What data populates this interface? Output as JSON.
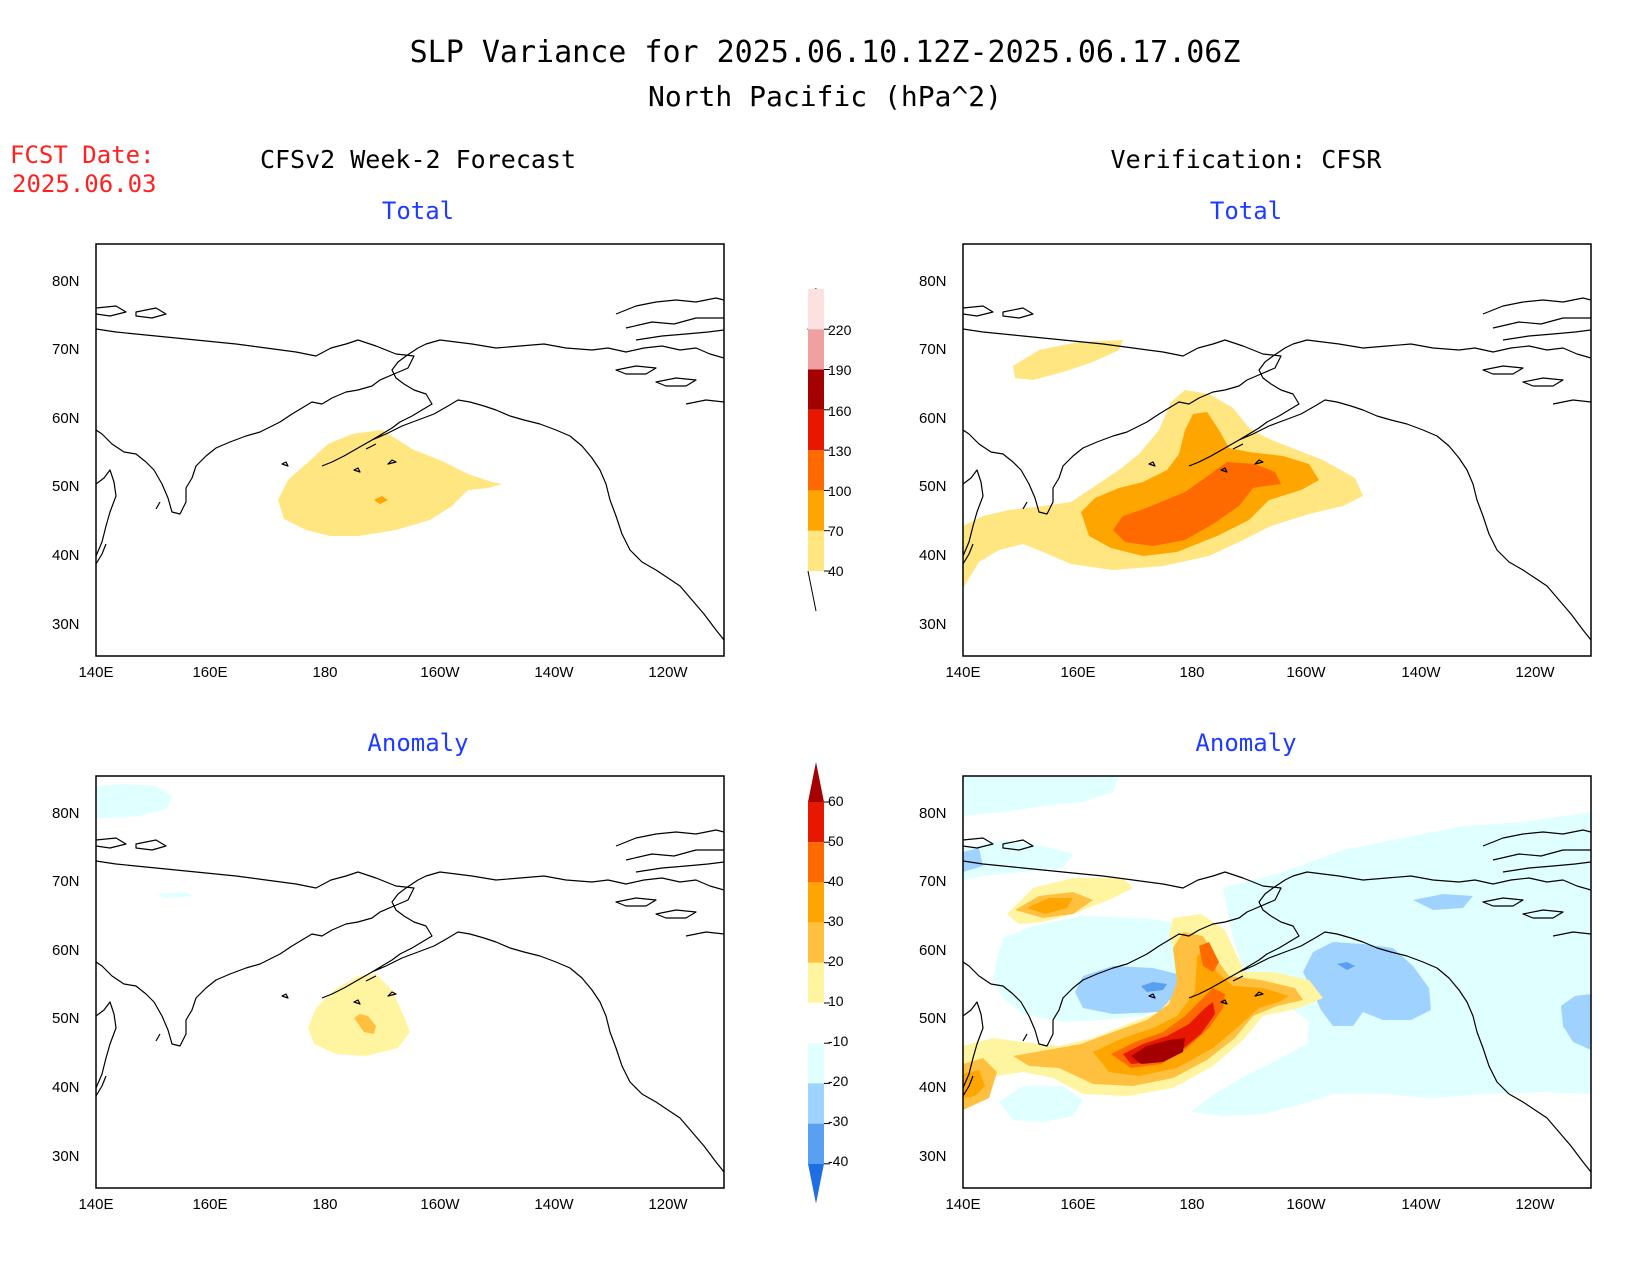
{
  "header": {
    "title_line1": "SLP Variance for 2025.06.10.12Z-2025.06.17.06Z",
    "title_line2": "North Pacific (hPa^2)",
    "fcst_label": "FCST Date:",
    "fcst_date": "2025.06.03",
    "fcst_color": "#ff2020"
  },
  "columns": {
    "left": "CFSv2 Week-2 Forecast",
    "right": "Verification: CFSR"
  },
  "panels": [
    {
      "title": "Total"
    },
    {
      "title": "Total"
    },
    {
      "title": "Anomaly"
    },
    {
      "title": "Anomaly"
    }
  ],
  "axes": {
    "lat_labels": [
      "80N",
      "70N",
      "60N",
      "50N",
      "40N",
      "30N"
    ],
    "lon_labels": [
      "140E",
      "160E",
      "180",
      "160W",
      "140W",
      "120W"
    ]
  },
  "colorbars": {
    "total": {
      "levels": [
        "40",
        "70",
        "100",
        "130",
        "160",
        "190",
        "220"
      ],
      "colors": [
        "#ffe680",
        "#ffa500",
        "#ff6a00",
        "#e81800",
        "#a50000",
        "#f0a0a0",
        "#fde0e0"
      ]
    },
    "anomaly": {
      "levels": [
        "60",
        "50",
        "40",
        "30",
        "20",
        "10",
        "-10",
        "-20",
        "-30",
        "-40"
      ],
      "colors": [
        "#a50000",
        "#e81800",
        "#ff6a00",
        "#ffa500",
        "#ffc040",
        "#fff5a0",
        "#ffffff",
        "#e0ffff",
        "#a0d2ff",
        "#5aa0f0",
        "#1e6ee6"
      ]
    }
  },
  "title_color": "#1e3cff"
}
